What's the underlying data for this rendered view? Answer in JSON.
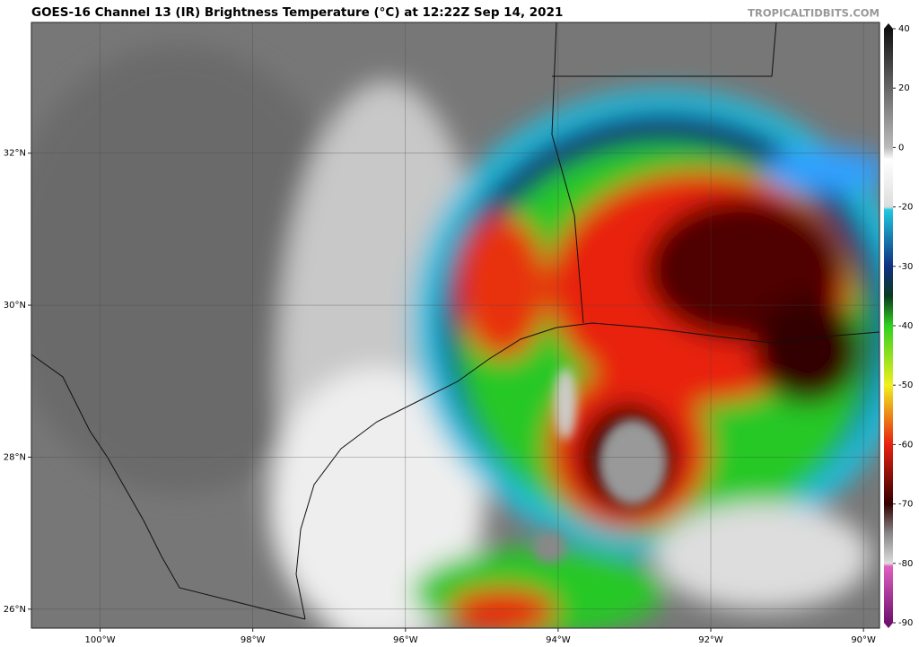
{
  "header": {
    "title": "GOES-16 Channel 13 (IR) Brightness Temperature (°C) at 12:22Z Sep 14, 2021",
    "watermark": "TROPICALTIDBITS.COM"
  },
  "map": {
    "lonlim": [
      -100.9,
      -89.79
    ],
    "latlim": [
      25.75,
      33.72
    ],
    "lon_ticks": [
      {
        "value": -100,
        "label": "100°W"
      },
      {
        "value": -98,
        "label": "98°W"
      },
      {
        "value": -96,
        "label": "96°W"
      },
      {
        "value": -94,
        "label": "94°W"
      },
      {
        "value": -92,
        "label": "92°W"
      },
      {
        "value": -90,
        "label": "90°W"
      }
    ],
    "lat_ticks": [
      {
        "value": 32,
        "label": "32°N"
      },
      {
        "value": 30,
        "label": "30°N"
      },
      {
        "value": 28,
        "label": "28°N"
      },
      {
        "value": 26,
        "label": "26°N"
      }
    ]
  },
  "colorbar": {
    "ticks": [
      40,
      20,
      0,
      -20,
      -30,
      -40,
      -50,
      -60,
      -70,
      -80,
      -90
    ]
  }
}
